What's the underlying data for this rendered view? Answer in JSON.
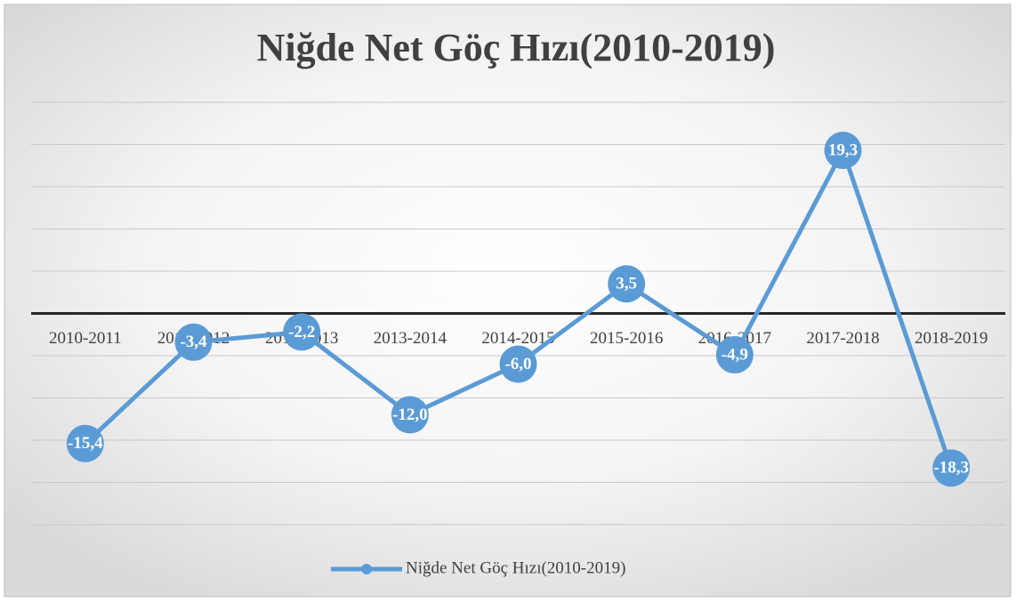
{
  "chart_data": {
    "type": "line",
    "title": "Niğde Net Göç Hızı(2010-2019)",
    "categories": [
      "2010-2011",
      "2011-2012",
      "2012-2013",
      "2013-2014",
      "2014-2015",
      "2015-2016",
      "2016-2017",
      "2017-2018",
      "2018-2019"
    ],
    "series": [
      {
        "name": "Niğde Net Göç Hızı(2010-2019)",
        "color": "#5b9bd5",
        "values": [
          -15.4,
          -3.4,
          -2.2,
          -12.0,
          -6.0,
          3.5,
          -4.9,
          19.3,
          -18.3
        ],
        "value_labels": [
          "-15,4",
          "-3,4",
          "-2,2",
          "-12,0",
          "-6,0",
          "3,5",
          "-4,9",
          "19,3",
          "-18,3"
        ]
      }
    ],
    "ylim": [
      -25,
      25
    ],
    "yticks": [
      -25,
      -20,
      -15,
      -10,
      -5,
      0,
      5,
      10,
      15,
      20,
      25
    ],
    "grid": true,
    "legend": "bottom"
  }
}
